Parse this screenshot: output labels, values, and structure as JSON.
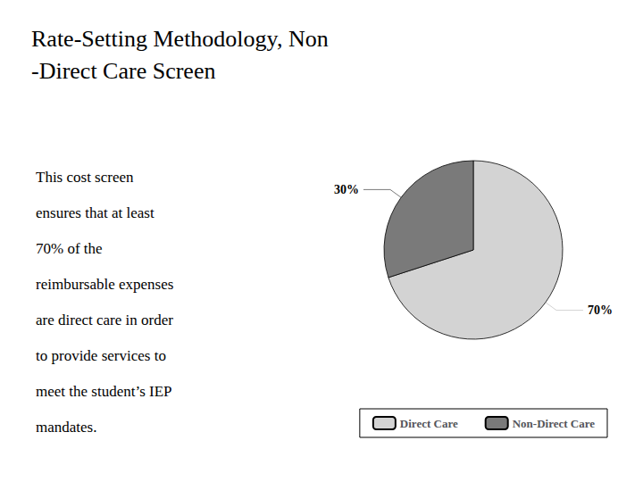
{
  "chart_data": {
    "type": "pie",
    "title": "Rate-Setting Methodology, Non\n-Direct Care Screen",
    "annotations": [
      "This cost screen",
      "ensures that at least",
      "70% of the",
      "reimbursable expenses",
      "are direct care in order",
      "to provide services to",
      "meet the student’s IEP",
      "mandates."
    ],
    "categories": [
      "Direct Care",
      "Non-Direct Care"
    ],
    "values": [
      70,
      30
    ],
    "value_labels": [
      "70%",
      "30%"
    ],
    "colors": [
      "#d3d3d3",
      "#7a7a7a"
    ],
    "data_labels": true,
    "legend": "lower right"
  }
}
